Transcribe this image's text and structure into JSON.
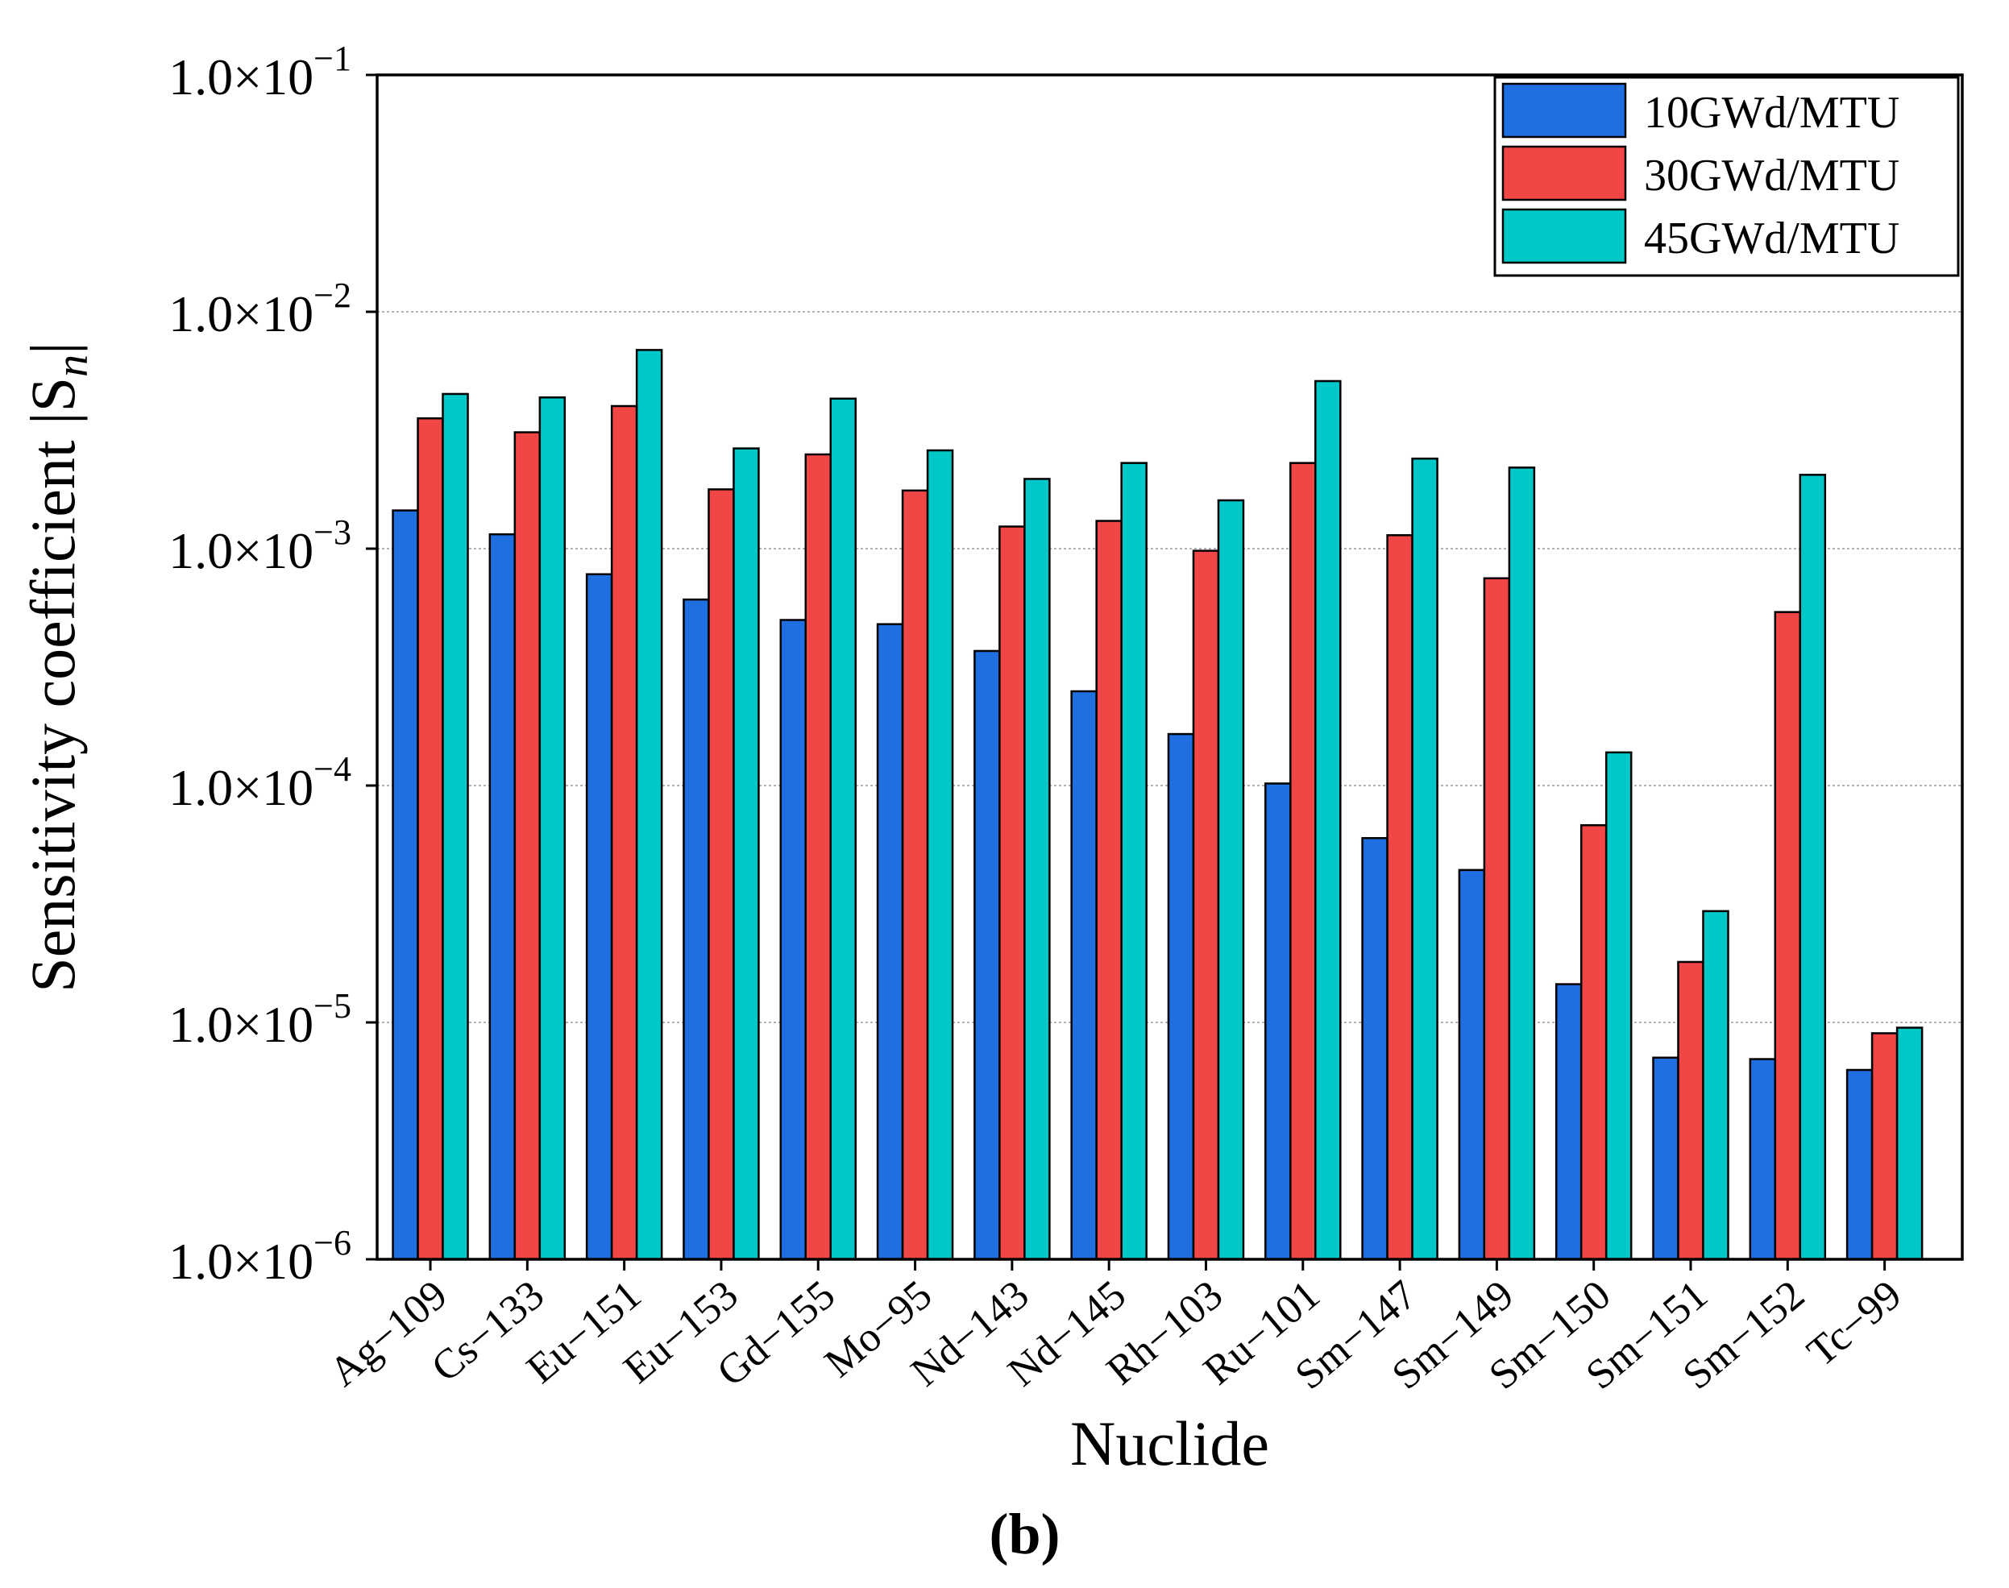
{
  "chart_data": {
    "type": "bar",
    "title": "",
    "xlabel": "Nuclide",
    "ylabel": "Sensitivity coefficient |S",
    "ylabel_subscript": "n",
    "ylabel_close": "|",
    "yscale": "log",
    "ylim": [
      1e-06,
      0.1
    ],
    "grid": true,
    "legend_position": "top-right",
    "panel_label": "(b)",
    "yticks": [
      {
        "value": 1e-06,
        "mantissa": "1.0×10",
        "exp": "−6"
      },
      {
        "value": 1e-05,
        "mantissa": "1.0×10",
        "exp": "−5"
      },
      {
        "value": 0.0001,
        "mantissa": "1.0×10",
        "exp": "−4"
      },
      {
        "value": 0.001,
        "mantissa": "1.0×10",
        "exp": "−3"
      },
      {
        "value": 0.01,
        "mantissa": "1.0×10",
        "exp": "−2"
      },
      {
        "value": 0.1,
        "mantissa": "1.0×10",
        "exp": "−1"
      }
    ],
    "categories": [
      "Ag−109",
      "Cs−133",
      "Eu−151",
      "Eu−153",
      "Gd−155",
      "Mo−95",
      "Nd−143",
      "Nd−145",
      "Rh−103",
      "Ru−101",
      "Sm−147",
      "Sm−149",
      "Sm−150",
      "Sm−151",
      "Sm−152",
      "Tc−99"
    ],
    "series": [
      {
        "name": "10GWd/MTU",
        "color": "#1f6fe0",
        "values": [
          0.00145,
          0.00115,
          0.00078,
          0.00061,
          0.0005,
          0.00048,
          0.00037,
          0.00025,
          0.000165,
          0.000102,
          6e-05,
          4.4e-05,
          1.45e-05,
          7.1e-06,
          7e-06,
          6.3e-06
        ]
      },
      {
        "name": "30GWd/MTU",
        "color": "#f04646",
        "values": [
          0.00355,
          0.0031,
          0.004,
          0.00178,
          0.0025,
          0.00176,
          0.00124,
          0.00131,
          0.00098,
          0.0023,
          0.00114,
          0.00075,
          6.8e-05,
          1.8e-05,
          0.00054,
          9e-06
        ]
      },
      {
        "name": "45GWd/MTU",
        "color": "#00c8c8",
        "values": [
          0.0045,
          0.00435,
          0.0069,
          0.00265,
          0.0043,
          0.0026,
          0.00197,
          0.0023,
          0.0016,
          0.0051,
          0.0024,
          0.0022,
          0.000138,
          2.95e-05,
          0.00205,
          9.5e-06
        ]
      }
    ]
  }
}
